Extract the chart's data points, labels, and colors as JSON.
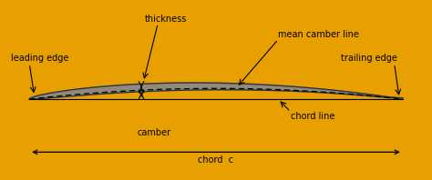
{
  "background_outer": "#e8a000",
  "background_inner": "#d0d0d0",
  "aerofoil_fill": "#888888",
  "aerofoil_edge": "#333333",
  "line_color": "#000000",
  "text_color": "#000000",
  "figsize": [
    4.74,
    1.98
  ],
  "dpi": 100,
  "labels": {
    "leading_edge": "leading edge",
    "trailing_edge": "trailing edge",
    "thickness": "thickness",
    "camber": "camber",
    "chord_line": "chord line",
    "mean_camber_line": "mean camber line",
    "chord_c": "chord  c"
  }
}
